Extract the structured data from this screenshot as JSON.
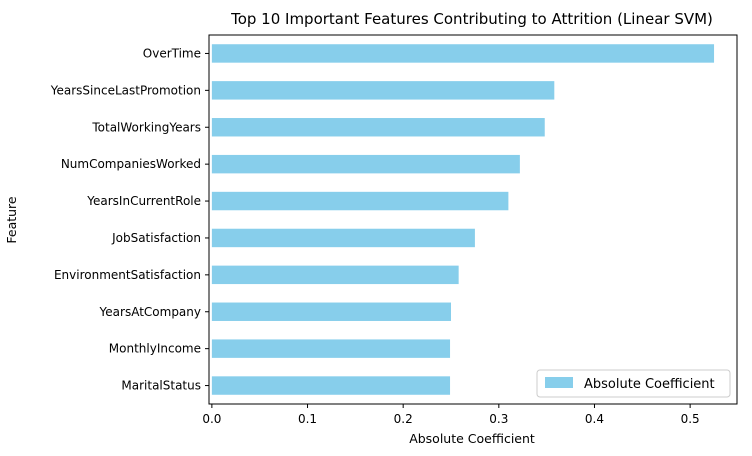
{
  "chart_data": {
    "type": "bar",
    "orientation": "horizontal",
    "title": "Top 10 Important Features Contributing to Attrition (Linear SVM)",
    "xlabel": "Absolute Coefficient",
    "ylabel": "Feature",
    "categories": [
      "OverTime",
      "YearsSinceLastPromotion",
      "TotalWorkingYears",
      "NumCompaniesWorked",
      "YearsInCurrentRole",
      "JobSatisfaction",
      "EnvironmentSatisfaction",
      "YearsAtCompany",
      "MonthlyIncome",
      "MaritalStatus"
    ],
    "series": [
      {
        "name": "Absolute Coefficient",
        "values": [
          0.525,
          0.358,
          0.348,
          0.322,
          0.31,
          0.275,
          0.258,
          0.25,
          0.249,
          0.249
        ],
        "color": "#87ceeb"
      }
    ],
    "xlim": [
      -0.003,
      0.549
    ],
    "xticks": [
      0.0,
      0.1,
      0.2,
      0.3,
      0.4,
      0.5
    ],
    "xtick_labels": [
      "0.0",
      "0.1",
      "0.2",
      "0.3",
      "0.4",
      "0.5"
    ],
    "grid": false,
    "legend_position": "bottom-right"
  }
}
